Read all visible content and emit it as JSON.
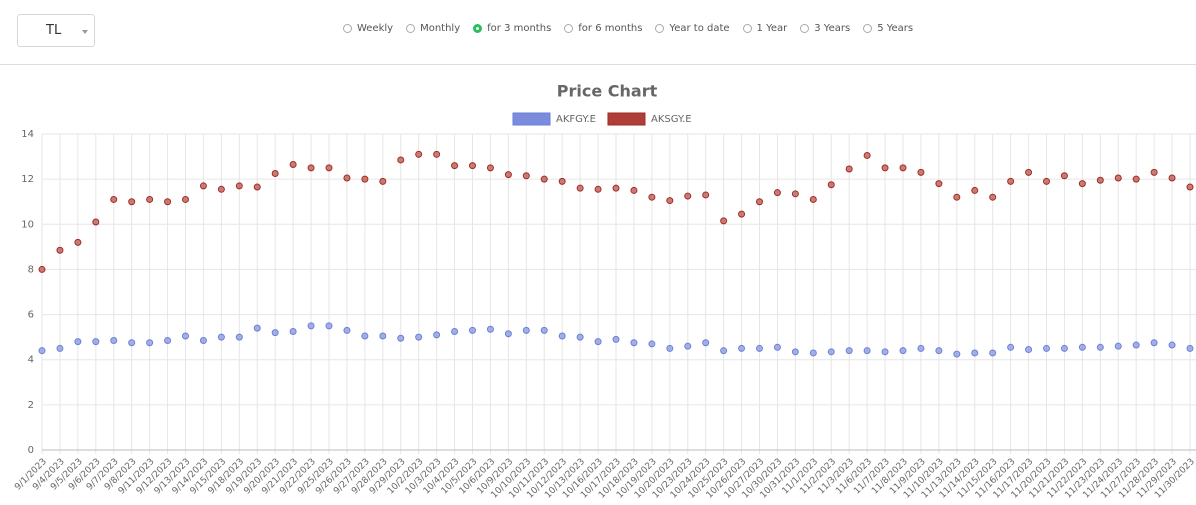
{
  "currency_select": {
    "value": "TL"
  },
  "periods": {
    "options": [
      "Weekly",
      "Monthly",
      "for 3 months",
      "for 6 months",
      "Year to date",
      "1 Year",
      "3 Years",
      "5 Years"
    ],
    "selected": 2
  },
  "chart_data": {
    "type": "line",
    "title": "Price Chart",
    "categories": [
      "9/1/2023",
      "9/4/2023",
      "9/5/2023",
      "9/6/2023",
      "9/7/2023",
      "9/8/2023",
      "9/11/2023",
      "9/12/2023",
      "9/13/2023",
      "9/14/2023",
      "9/15/2023",
      "9/18/2023",
      "9/19/2023",
      "9/20/2023",
      "9/21/2023",
      "9/22/2023",
      "9/25/2023",
      "9/26/2023",
      "9/27/2023",
      "9/28/2023",
      "9/29/2023",
      "10/2/2023",
      "10/3/2023",
      "10/4/2023",
      "10/5/2023",
      "10/6/2023",
      "10/9/2023",
      "10/10/2023",
      "10/11/2023",
      "10/12/2023",
      "10/13/2023",
      "10/16/2023",
      "10/17/2023",
      "10/18/2023",
      "10/19/2023",
      "10/20/2023",
      "10/23/2023",
      "10/24/2023",
      "10/25/2023",
      "10/26/2023",
      "10/27/2023",
      "10/30/2023",
      "10/31/2023",
      "11/1/2023",
      "11/2/2023",
      "11/3/2023",
      "11/6/2023",
      "11/7/2023",
      "11/8/2023",
      "11/9/2023",
      "11/10/2023",
      "11/13/2023",
      "11/14/2023",
      "11/15/2023",
      "11/16/2023",
      "11/17/2023",
      "11/20/2023",
      "11/21/2023",
      "11/22/2023",
      "11/23/2023",
      "11/24/2023",
      "11/27/2023",
      "11/28/2023",
      "11/29/2023",
      "11/30/2023"
    ],
    "series": [
      {
        "name": "AKFGY.E",
        "color": "#6b7fd7",
        "values": [
          4.4,
          4.5,
          4.8,
          4.8,
          4.85,
          4.75,
          4.75,
          4.85,
          5.05,
          4.85,
          5.0,
          5.0,
          5.4,
          5.2,
          5.25,
          5.5,
          5.5,
          5.3,
          5.05,
          5.05,
          4.95,
          5.0,
          5.1,
          5.25,
          5.3,
          5.35,
          5.15,
          5.3,
          5.3,
          5.05,
          5.0,
          4.8,
          4.9,
          4.75,
          4.7,
          4.5,
          4.6,
          4.75,
          4.4,
          4.5,
          4.5,
          4.55,
          4.35,
          4.3,
          4.35,
          4.4,
          4.4,
          4.35,
          4.4,
          4.5,
          4.4,
          4.25,
          4.3,
          4.3,
          4.55,
          4.45,
          4.5,
          4.5,
          4.55,
          4.55,
          4.6,
          4.65,
          4.75,
          4.65,
          4.5
        ]
      },
      {
        "name": "AKSGY.E",
        "color": "#a52a22",
        "values": [
          8.0,
          8.85,
          9.2,
          10.1,
          11.1,
          11.0,
          11.1,
          11.0,
          11.1,
          11.7,
          11.55,
          11.7,
          11.65,
          12.25,
          12.65,
          12.5,
          12.5,
          12.05,
          12.0,
          11.9,
          12.85,
          13.1,
          13.1,
          12.6,
          12.6,
          12.5,
          12.2,
          12.15,
          12.0,
          11.9,
          11.6,
          11.55,
          11.6,
          11.5,
          11.2,
          11.05,
          11.25,
          11.3,
          10.15,
          10.45,
          11.0,
          11.4,
          11.35,
          11.1,
          11.75,
          12.45,
          13.05,
          12.5,
          12.5,
          12.3,
          11.8,
          11.2,
          11.5,
          11.2,
          11.9,
          12.3,
          11.9,
          12.15,
          11.8,
          11.95,
          12.05,
          12.0,
          12.3,
          12.05,
          11.65
        ]
      }
    ],
    "ylim": [
      0,
      14
    ],
    "yticks": [
      0,
      2,
      4,
      6,
      8,
      10,
      12,
      14
    ],
    "grid": true
  }
}
